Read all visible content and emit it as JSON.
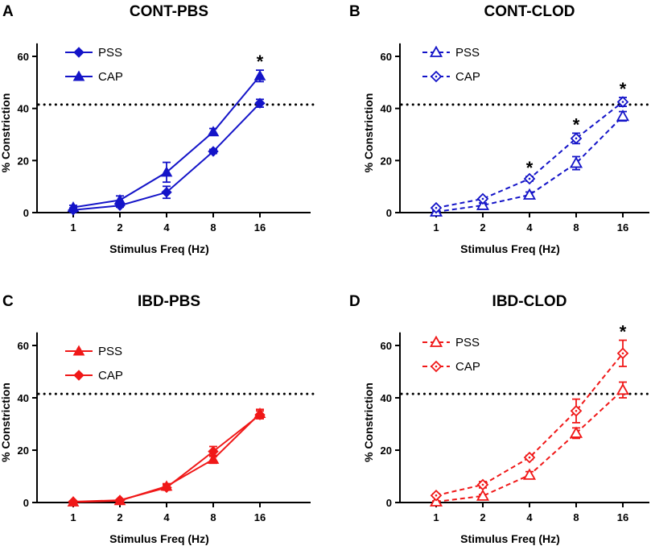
{
  "figure": {
    "x_ticks": [
      "1",
      "2",
      "4",
      "8",
      "16"
    ],
    "y_ticks": [
      "0",
      "20",
      "40",
      "60"
    ]
  },
  "chart_data": [
    {
      "panel": "A",
      "title": "CONT-PBS",
      "type": "line",
      "xlabel": "Stimulus Freq (Hz)",
      "ylabel": "% Constriction",
      "x": [
        1,
        2,
        4,
        8,
        16
      ],
      "x_scale": "log2",
      "ylim": [
        0,
        65
      ],
      "reference_line": 41.5,
      "color": "#1414c8",
      "dashed": false,
      "filled": true,
      "series": [
        {
          "name": "PSS",
          "marker": "diamond",
          "values": [
            1.0,
            2.7,
            7.8,
            23.5,
            42.0
          ],
          "errors": [
            0.8,
            0.6,
            2.3,
            0.8,
            1.5
          ]
        },
        {
          "name": "CAP",
          "marker": "triangle",
          "values": [
            2.0,
            4.8,
            15.5,
            31.0,
            52.5
          ],
          "errors": [
            0.8,
            1.6,
            3.8,
            1.3,
            2.2
          ]
        }
      ],
      "significance": [
        {
          "x": 16,
          "label": "*"
        }
      ]
    },
    {
      "panel": "B",
      "title": "CONT-CLOD",
      "type": "line",
      "xlabel": "Stimulus Freq (Hz)",
      "ylabel": "% Constriction",
      "x": [
        1,
        2,
        4,
        8,
        16
      ],
      "x_scale": "log2",
      "ylim": [
        0,
        65
      ],
      "reference_line": 41.5,
      "color": "#1414c8",
      "dashed": true,
      "filled": false,
      "series": [
        {
          "name": "PSS",
          "marker": "triangle",
          "values": [
            0.3,
            2.8,
            6.8,
            19.0,
            37.0
          ],
          "errors": [
            0.3,
            0.9,
            1.1,
            2.5,
            1.8
          ]
        },
        {
          "name": "CAP",
          "marker": "diamond",
          "values": [
            1.8,
            5.3,
            13.0,
            28.5,
            42.5
          ],
          "errors": [
            0.3,
            0.6,
            0.9,
            2.0,
            1.7
          ]
        }
      ],
      "significance": [
        {
          "x": 4,
          "label": "*"
        },
        {
          "x": 8,
          "label": "*"
        },
        {
          "x": 16,
          "label": "*"
        }
      ]
    },
    {
      "panel": "C",
      "title": "IBD-PBS",
      "type": "line",
      "xlabel": "Stimulus Freq (Hz)",
      "ylabel": "% Constriction",
      "x": [
        1,
        2,
        4,
        8,
        16
      ],
      "x_scale": "log2",
      "ylim": [
        0,
        65
      ],
      "reference_line": 41.5,
      "color": "#f01818",
      "dashed": false,
      "filled": true,
      "series": [
        {
          "name": "PSS",
          "marker": "triangle",
          "values": [
            0.2,
            0.7,
            6.2,
            16.5,
            34.0
          ],
          "errors": [
            0.2,
            0.3,
            1.0,
            1.5,
            1.6
          ]
        },
        {
          "name": "CAP",
          "marker": "diamond",
          "values": [
            0.3,
            0.9,
            5.7,
            19.5,
            33.5
          ],
          "errors": [
            0.2,
            0.3,
            1.0,
            1.9,
            1.5
          ]
        }
      ],
      "significance": []
    },
    {
      "panel": "D",
      "title": "IBD-CLOD",
      "type": "line",
      "xlabel": "Stimulus Freq (Hz)",
      "ylabel": "% Constriction",
      "x": [
        1,
        2,
        4,
        8,
        16
      ],
      "x_scale": "log2",
      "ylim": [
        0,
        65
      ],
      "reference_line": 41.5,
      "color": "#f01818",
      "dashed": true,
      "filled": false,
      "series": [
        {
          "name": "PSS",
          "marker": "triangle",
          "values": [
            0.3,
            2.5,
            10.5,
            26.5,
            43.0
          ],
          "errors": [
            0.3,
            0.6,
            1.3,
            2.0,
            3.0
          ]
        },
        {
          "name": "CAP",
          "marker": "diamond",
          "values": [
            2.7,
            6.8,
            17.2,
            35.0,
            57.0
          ],
          "errors": [
            0.6,
            1.2,
            0.8,
            4.5,
            5.0
          ]
        }
      ],
      "significance": [
        {
          "x": 16,
          "label": "*"
        }
      ]
    }
  ]
}
